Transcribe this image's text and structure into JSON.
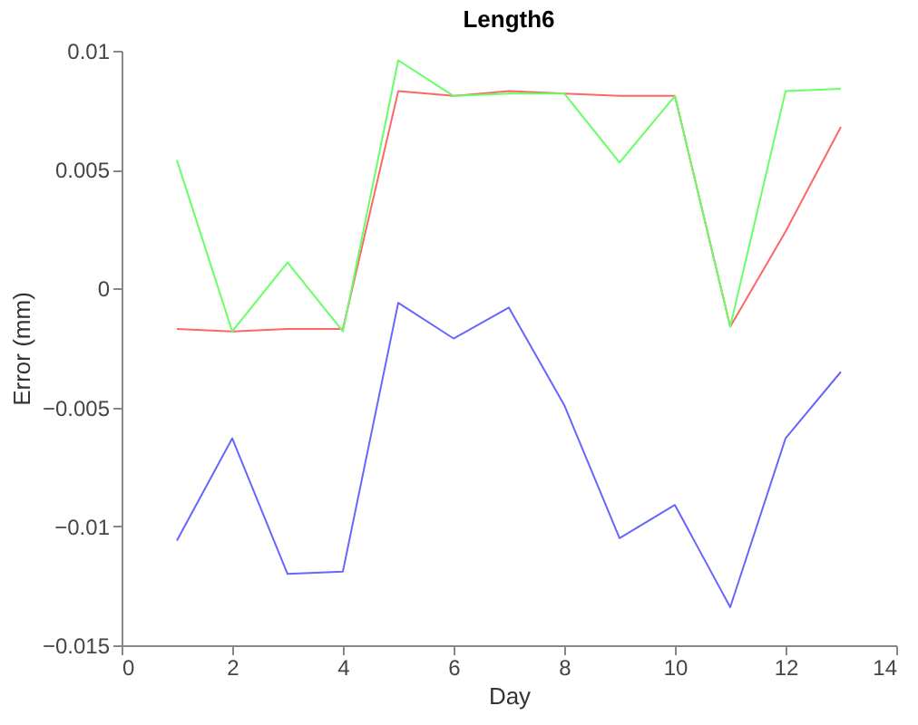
{
  "chart_data": {
    "type": "line",
    "title": "Length6",
    "xlabel": "Day",
    "ylabel": "Error (mm)",
    "x": [
      1,
      2,
      3,
      4,
      5,
      6,
      7,
      8,
      9,
      10,
      11,
      12,
      13
    ],
    "series": [
      {
        "color": "#6666ff",
        "values": [
          -0.0106,
          -0.0063,
          -0.012,
          -0.0119,
          -0.0006,
          -0.0021,
          -0.0008,
          -0.0049,
          -0.0105,
          -0.0091,
          -0.0134,
          -0.0063,
          -0.0035
        ]
      },
      {
        "color": "#ff6666",
        "values": [
          -0.0017,
          -0.0018,
          -0.0017,
          -0.0017,
          0.0083,
          0.0081,
          0.0083,
          0.0082,
          0.0081,
          0.0081,
          -0.0016,
          0.0024,
          0.0068
        ]
      },
      {
        "color": "#66ff66",
        "values": [
          0.0054,
          -0.0018,
          0.0011,
          -0.0018,
          0.0096,
          0.0081,
          0.0082,
          0.0082,
          0.0053,
          0.0081,
          -0.0016,
          0.0083,
          0.0084
        ]
      }
    ],
    "xlim": [
      0,
      14
    ],
    "xticks": [
      0,
      2,
      4,
      6,
      8,
      10,
      12,
      14
    ],
    "ylim": [
      -0.015,
      0.01
    ],
    "yticks": [
      -0.015,
      -0.01,
      -0.005,
      0,
      0.005,
      0.01
    ],
    "grid": false,
    "legend": false,
    "marker": "none",
    "line_style": "solid"
  }
}
